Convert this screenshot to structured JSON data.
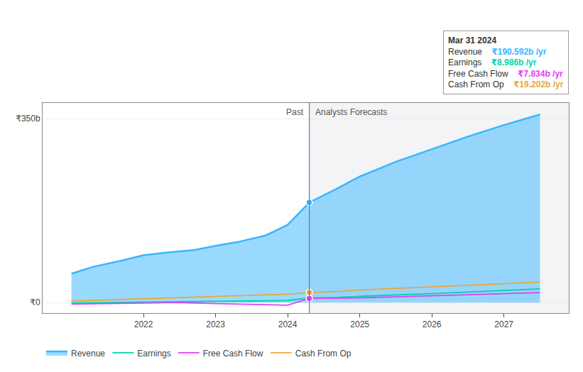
{
  "chart_data": {
    "type": "line",
    "xlim": [
      2020.6,
      2027.9
    ],
    "xticks": [
      2022,
      2023,
      2024,
      2025,
      2026,
      2027
    ],
    "ylim": [
      -20,
      380
    ],
    "yticks": [
      {
        "value": 0,
        "label": "₹0"
      },
      {
        "value": 350,
        "label": "₹350b"
      }
    ],
    "grid": true,
    "legend": "bottom",
    "series": [
      {
        "name": "Revenue",
        "color": "#38b6ff",
        "type": "area",
        "x": [
          2021.0,
          2021.3,
          2021.7,
          2022.0,
          2022.3,
          2022.7,
          2023.0,
          2023.3,
          2023.7,
          2024.0,
          2024.3,
          2024.7,
          2025.0,
          2025.5,
          2026.0,
          2026.5,
          2027.0,
          2027.5
        ],
        "values": [
          55,
          68,
          80,
          90,
          95,
          100,
          108,
          115,
          128,
          148,
          190.592,
          218,
          240,
          268,
          292,
          316,
          338,
          358
        ]
      },
      {
        "name": "Earnings",
        "color": "#00d4aa",
        "type": "line",
        "x": [
          2021.0,
          2021.5,
          2022.0,
          2022.5,
          2023.0,
          2023.5,
          2024.0,
          2024.3,
          2024.7,
          2025.0,
          2025.5,
          2026.0,
          2026.5,
          2027.0,
          2027.5
        ],
        "values": [
          -1,
          0,
          1.5,
          2,
          2.5,
          3,
          4,
          8.986,
          10,
          12,
          14,
          17,
          20,
          23,
          26
        ]
      },
      {
        "name": "Free Cash Flow",
        "color": "#e040fb",
        "type": "line",
        "x": [
          2021.0,
          2021.5,
          2022.0,
          2022.5,
          2023.0,
          2023.5,
          2024.0,
          2024.3,
          2024.7,
          2025.0,
          2025.5,
          2026.0,
          2026.5,
          2027.0,
          2027.5
        ],
        "values": [
          -3,
          -2,
          -1,
          0,
          -2,
          -3,
          -5,
          7.834,
          8,
          9,
          11,
          13,
          15,
          17,
          19
        ]
      },
      {
        "name": "Cash From Op",
        "color": "#e8a838",
        "type": "line",
        "x": [
          2021.0,
          2021.5,
          2022.0,
          2022.5,
          2023.0,
          2023.5,
          2024.0,
          2024.3,
          2024.7,
          2025.0,
          2025.5,
          2026.0,
          2026.5,
          2027.0,
          2027.5
        ],
        "values": [
          3,
          5,
          7,
          9,
          11,
          13,
          16,
          19.202,
          21,
          24,
          27,
          30,
          33,
          36,
          39
        ]
      }
    ],
    "divider": {
      "x": 2024.3,
      "labels": [
        "Past",
        "Analysts Forecasts"
      ]
    },
    "marked_points": [
      {
        "x": 2024.3,
        "y": 190.592,
        "color": "#38b6ff"
      },
      {
        "x": 2024.3,
        "y": 19.202,
        "color": "#e8a838"
      },
      {
        "x": 2024.3,
        "y": 7.834,
        "color": "#e040fb"
      }
    ],
    "tooltip": {
      "title": "Mar 31 2024",
      "rows": [
        {
          "label": "Revenue",
          "value": "₹190.592b /yr",
          "color": "#38b6ff"
        },
        {
          "label": "Earnings",
          "value": "₹8.986b /yr",
          "color": "#00d4aa"
        },
        {
          "label": "Free Cash Flow",
          "value": "₹7.834b /yr",
          "color": "#e040fb"
        },
        {
          "label": "Cash From Op",
          "value": "₹19.202b /yr",
          "color": "#e8a838"
        }
      ]
    }
  }
}
